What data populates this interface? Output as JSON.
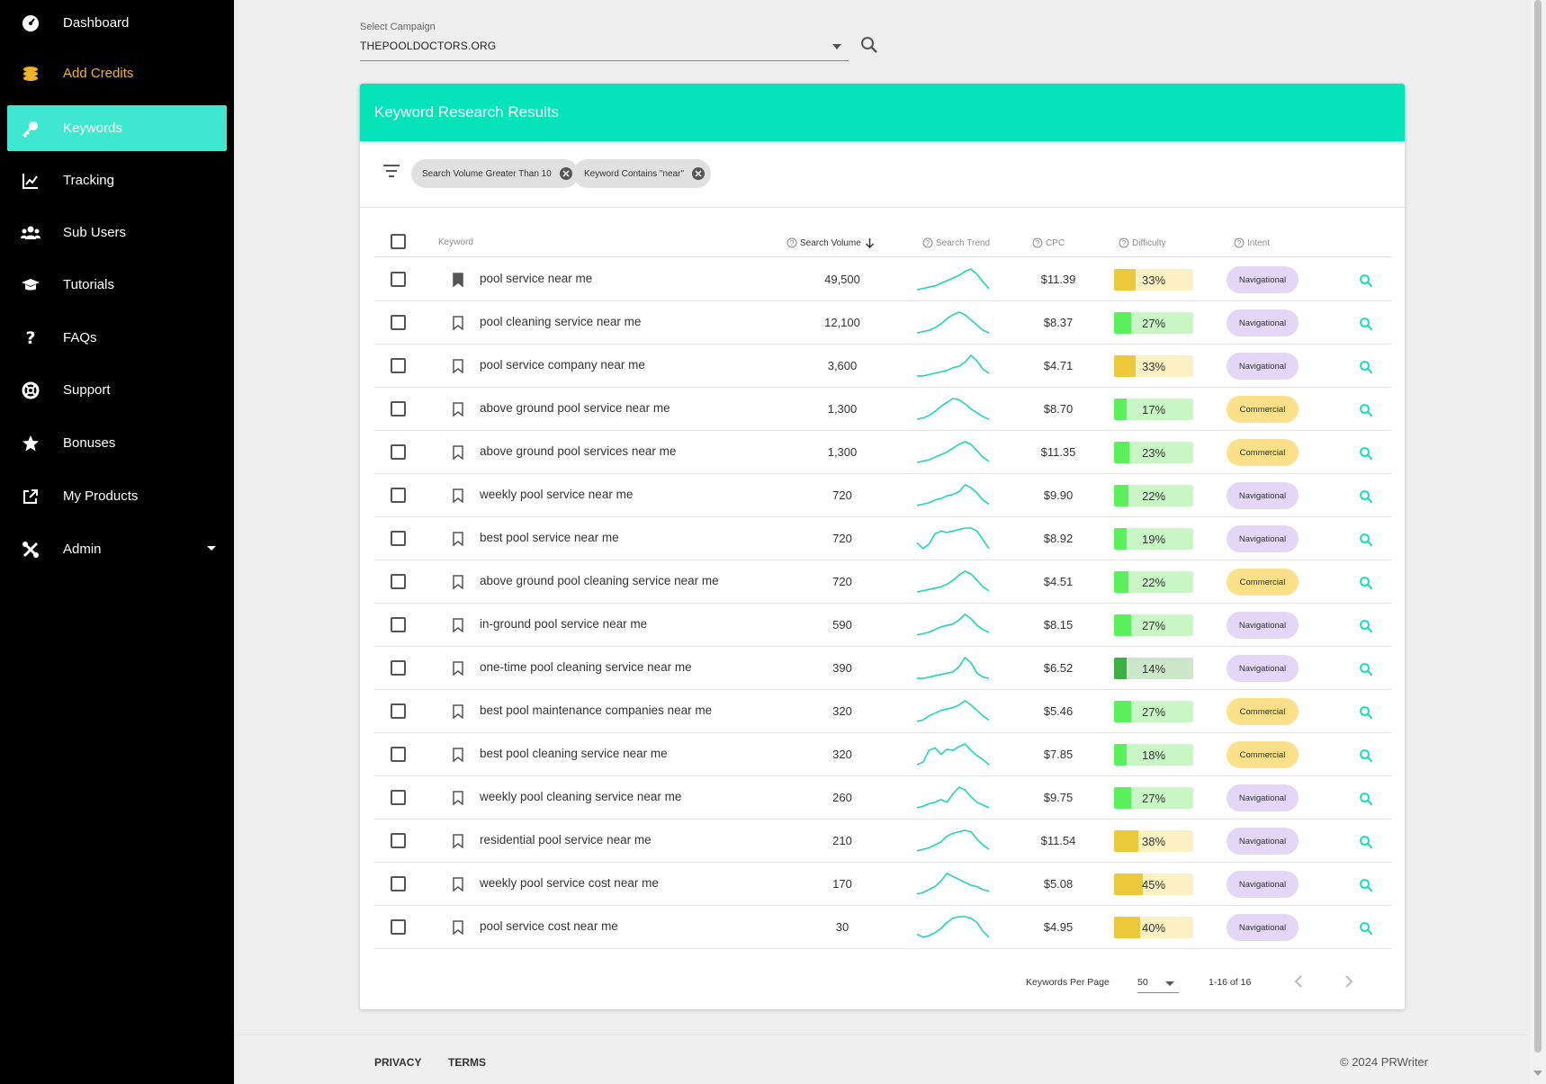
{
  "sidebar": {
    "items": [
      {
        "label": "Dashboard",
        "icon": "dashboard-icon"
      },
      {
        "label": "Add Credits",
        "icon": "coins-icon"
      },
      {
        "label": "Keywords",
        "icon": "key-icon"
      },
      {
        "label": "Tracking",
        "icon": "chart-line-icon"
      },
      {
        "label": "Sub Users",
        "icon": "users-icon"
      },
      {
        "label": "Tutorials",
        "icon": "graduation-cap-icon"
      },
      {
        "label": "FAQs",
        "icon": "question-icon"
      },
      {
        "label": "Support",
        "icon": "lifebuoy-icon"
      },
      {
        "label": "Bonuses",
        "icon": "star-icon"
      },
      {
        "label": "My Products",
        "icon": "external-link-icon"
      },
      {
        "label": "Admin",
        "icon": "tools-icon"
      }
    ]
  },
  "campaign": {
    "label": "Select Campaign",
    "value": "THEPOOLDOCTORS.ORG"
  },
  "card": {
    "title": "Keyword Research Results"
  },
  "filters": [
    "Search Volume Greater Than 10",
    "Keyword Contains \"near\""
  ],
  "table": {
    "headers": {
      "keyword": "Keyword",
      "volume": "Search Volume",
      "trend": "Search Trend",
      "cpc": "CPC",
      "difficulty": "Difficulty",
      "intent": "Intent"
    },
    "rows": [
      {
        "keyword": "pool service near me",
        "volume": "49,500",
        "cpc": "$11.39",
        "difficulty": "33%",
        "difficulty_value": 33,
        "intent": "Navigational",
        "saved": true,
        "trend": [
          2,
          3,
          4,
          5,
          7,
          9,
          11,
          13,
          16,
          18,
          14,
          8,
          3
        ]
      },
      {
        "keyword": "pool cleaning service near me",
        "volume": "12,100",
        "cpc": "$8.37",
        "difficulty": "27%",
        "difficulty_value": 27,
        "intent": "Navigational",
        "saved": false,
        "trend": [
          2,
          3,
          4,
          6,
          9,
          13,
          16,
          18,
          16,
          12,
          8,
          4,
          2
        ]
      },
      {
        "keyword": "pool service company near me",
        "volume": "3,600",
        "cpc": "$4.71",
        "difficulty": "33%",
        "difficulty_value": 33,
        "intent": "Navigational",
        "saved": false,
        "trend": [
          2,
          2,
          3,
          4,
          5,
          6,
          8,
          9,
          12,
          17,
          13,
          7,
          4
        ]
      },
      {
        "keyword": "above ground pool service near me",
        "volume": "1,300",
        "cpc": "$8.70",
        "difficulty": "17%",
        "difficulty_value": 17,
        "intent": "Commercial",
        "saved": false,
        "trend": [
          2,
          3,
          5,
          8,
          12,
          15,
          18,
          17,
          14,
          10,
          7,
          4,
          2
        ]
      },
      {
        "keyword": "above ground pool services near me",
        "volume": "1,300",
        "cpc": "$11.35",
        "difficulty": "23%",
        "difficulty_value": 23,
        "intent": "Commercial",
        "saved": false,
        "trend": [
          2,
          3,
          4,
          6,
          8,
          10,
          13,
          16,
          18,
          16,
          11,
          6,
          3
        ]
      },
      {
        "keyword": "weekly pool service near me",
        "volume": "720",
        "cpc": "$9.90",
        "difficulty": "22%",
        "difficulty_value": 22,
        "intent": "Navigational",
        "saved": false,
        "trend": [
          2,
          3,
          4,
          6,
          7,
          9,
          10,
          12,
          17,
          15,
          11,
          6,
          3
        ]
      },
      {
        "keyword": "best pool service near me",
        "volume": "720",
        "cpc": "$8.92",
        "difficulty": "19%",
        "difficulty_value": 19,
        "intent": "Navigational",
        "saved": false,
        "trend": [
          6,
          2,
          5,
          12,
          14,
          13,
          14,
          15,
          16,
          16,
          14,
          8,
          2
        ]
      },
      {
        "keyword": "above ground pool cleaning service near me",
        "volume": "720",
        "cpc": "$4.51",
        "difficulty": "22%",
        "difficulty_value": 22,
        "intent": "Commercial",
        "saved": false,
        "trend": [
          2,
          3,
          4,
          5,
          6,
          8,
          11,
          15,
          18,
          16,
          11,
          6,
          3
        ]
      },
      {
        "keyword": "in-ground pool service near me",
        "volume": "590",
        "cpc": "$8.15",
        "difficulty": "27%",
        "difficulty_value": 27,
        "intent": "Navigational",
        "saved": false,
        "trend": [
          2,
          3,
          4,
          6,
          8,
          9,
          10,
          13,
          17,
          14,
          9,
          6,
          4
        ]
      },
      {
        "keyword": "one-time pool cleaning service near me",
        "volume": "390",
        "cpc": "$6.52",
        "difficulty": "14%",
        "difficulty_value": 14,
        "intent": "Navigational",
        "saved": false,
        "trend": [
          2,
          2,
          3,
          4,
          5,
          6,
          7,
          11,
          18,
          14,
          6,
          3,
          2
        ]
      },
      {
        "keyword": "best pool maintenance companies near me",
        "volume": "320",
        "cpc": "$5.46",
        "difficulty": "27%",
        "difficulty_value": 27,
        "intent": "Commercial",
        "saved": false,
        "trend": [
          2,
          3,
          6,
          8,
          10,
          11,
          12,
          14,
          17,
          14,
          10,
          6,
          3
        ]
      },
      {
        "keyword": "best pool cleaning service near me",
        "volume": "320",
        "cpc": "$7.85",
        "difficulty": "18%",
        "difficulty_value": 18,
        "intent": "Commercial",
        "saved": false,
        "trend": [
          2,
          4,
          13,
          15,
          10,
          14,
          13,
          16,
          18,
          13,
          9,
          6,
          2
        ]
      },
      {
        "keyword": "weekly pool cleaning service near me",
        "volume": "260",
        "cpc": "$9.75",
        "difficulty": "27%",
        "difficulty_value": 27,
        "intent": "Navigational",
        "saved": false,
        "trend": [
          2,
          3,
          5,
          6,
          8,
          6,
          12,
          17,
          15,
          10,
          6,
          4,
          2
        ]
      },
      {
        "keyword": "residential pool service near me",
        "volume": "210",
        "cpc": "$11.54",
        "difficulty": "38%",
        "difficulty_value": 38,
        "intent": "Navigational",
        "saved": false,
        "trend": [
          2,
          3,
          4,
          6,
          8,
          12,
          14,
          15,
          16,
          15,
          10,
          6,
          3
        ]
      },
      {
        "keyword": "weekly pool service cost near me",
        "volume": "170",
        "cpc": "$5.08",
        "difficulty": "45%",
        "difficulty_value": 45,
        "intent": "Navigational",
        "saved": false,
        "trend": [
          2,
          3,
          5,
          7,
          11,
          16,
          14,
          12,
          10,
          8,
          7,
          5,
          4
        ]
      },
      {
        "keyword": "pool service cost near me",
        "volume": "30",
        "cpc": "$4.95",
        "difficulty": "40%",
        "difficulty_value": 40,
        "intent": "Navigational",
        "saved": false,
        "trend": [
          4,
          2,
          3,
          5,
          8,
          12,
          15,
          16,
          16,
          15,
          12,
          6,
          2
        ]
      }
    ]
  },
  "pager": {
    "label": "Keywords Per Page",
    "per_page": "50",
    "range": "1-16 of 16"
  },
  "footer": {
    "privacy": "PRIVACY",
    "terms": "TERMS",
    "copyright": "© 2024 PRWriter"
  },
  "colors": {
    "accent": "#05e3b9",
    "active_nav": "#3ee8cf",
    "credits": "#f0b429",
    "trend_line": "#1ed6b3",
    "difficulty_easy": "#5cf05c",
    "difficulty_easy_bg": "#c8f7c5",
    "difficulty_very_easy": "#3cb043",
    "difficulty_very_easy_bg": "#cbe6c8",
    "difficulty_medium": "#ebc93b",
    "difficulty_medium_bg": "#fcf1c3",
    "intent_navigational": "#e4d6f7",
    "intent_commercial": "#fce08a"
  }
}
